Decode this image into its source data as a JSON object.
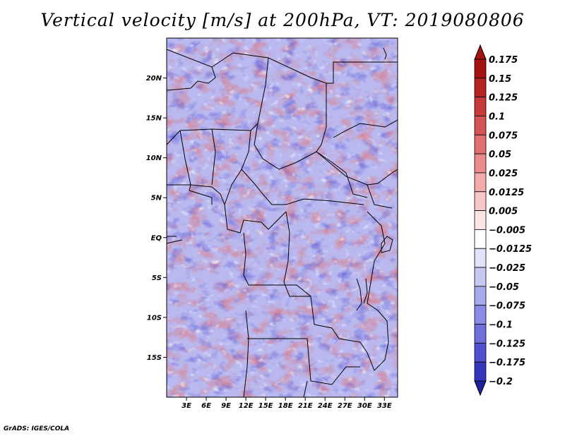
{
  "title": "Vertical velocity [m/s] at 200hPa, VT: 2019080806",
  "credit": "GrADS: IGES/COLA",
  "map": {
    "lat_range": [
      -20,
      25
    ],
    "lon_range": [
      0,
      35
    ],
    "lat_ticks": [
      {
        "value": 20,
        "label": "20N"
      },
      {
        "value": 15,
        "label": "15N"
      },
      {
        "value": 10,
        "label": "10N"
      },
      {
        "value": 5,
        "label": "5N"
      },
      {
        "value": 0,
        "label": "EQ"
      },
      {
        "value": -5,
        "label": "5S"
      },
      {
        "value": -10,
        "label": "10S"
      },
      {
        "value": -15,
        "label": "15S"
      }
    ],
    "lon_ticks": [
      {
        "value": 3,
        "label": "3E"
      },
      {
        "value": 6,
        "label": "6E"
      },
      {
        "value": 9,
        "label": "9E"
      },
      {
        "value": 12,
        "label": "12E"
      },
      {
        "value": 15,
        "label": "15E"
      },
      {
        "value": 18,
        "label": "18E"
      },
      {
        "value": 21,
        "label": "21E"
      },
      {
        "value": 24,
        "label": "24E"
      },
      {
        "value": 27,
        "label": "27E"
      },
      {
        "value": 30,
        "label": "30E"
      },
      {
        "value": 33,
        "label": "33E"
      }
    ]
  },
  "colorbar": {
    "levels": [
      {
        "label": "0.175",
        "color": "#a51212"
      },
      {
        "label": "0.15",
        "color": "#b62323"
      },
      {
        "label": "0.125",
        "color": "#c83a3a"
      },
      {
        "label": "0.1",
        "color": "#d65353"
      },
      {
        "label": "0.075",
        "color": "#e07070"
      },
      {
        "label": "0.05",
        "color": "#ea8c8c"
      },
      {
        "label": "0.025",
        "color": "#f2aaaa"
      },
      {
        "label": "0.0125",
        "color": "#f7c8c8"
      },
      {
        "label": "0.005",
        "color": "#fbe4e4"
      },
      {
        "label": "-0.005",
        "color": "#ffffff"
      },
      {
        "label": "-0.0125",
        "color": "#e2e2fa"
      },
      {
        "label": "-0.025",
        "color": "#c8c8f4"
      },
      {
        "label": "-0.05",
        "color": "#aaaaee"
      },
      {
        "label": "-0.075",
        "color": "#8c8ce6"
      },
      {
        "label": "-0.1",
        "color": "#6e6edc"
      },
      {
        "label": "-0.125",
        "color": "#5050d0"
      },
      {
        "label": "-0.175",
        "color": "#3434bc"
      },
      {
        "label": "-0.2",
        "color": "#2020a0"
      }
    ],
    "top_arrow_color": "#a51212",
    "bottom_arrow_color": "#2020a0"
  }
}
